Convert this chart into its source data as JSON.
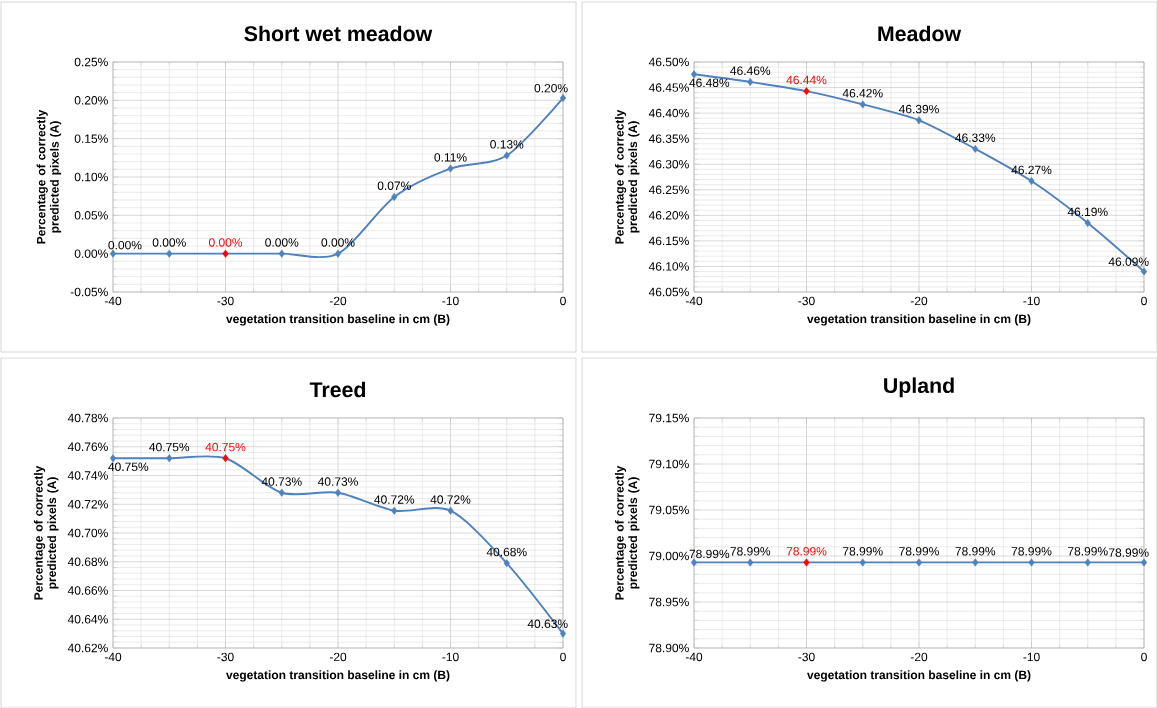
{
  "chart_data": [
    {
      "type": "line",
      "title": "Short wet meadow",
      "xlabel": "vegetation transition  baseline in cm (B)",
      "ylabel": "Percentage of correctly predicted pixels (A)",
      "x": [
        -40,
        -35,
        -30,
        -25,
        -20,
        -15,
        -10,
        -5,
        0
      ],
      "marker": "diamond",
      "line_style": "solid",
      "grid": true,
      "xlim": [
        -40,
        0
      ],
      "xticks": [
        -40,
        -30,
        -20,
        -10,
        0
      ],
      "ylim": [
        -0.05,
        0.25
      ],
      "yticks": [
        {
          "value": -0.05,
          "label": "-0.05%"
        },
        {
          "value": 0,
          "label": "0.00%"
        },
        {
          "value": 0.05,
          "label": "0.05%"
        },
        {
          "value": 0.1,
          "label": "0.10%"
        },
        {
          "value": 0.15,
          "label": "0.15%"
        },
        {
          "value": 0.2,
          "label": "0.20%"
        },
        {
          "value": 0.25,
          "label": "0.25%"
        }
      ],
      "series": [
        {
          "color": "#4f81bd",
          "colors": [
            "#4f81bd",
            "#4f81bd",
            "#ff0000",
            "#4f81bd",
            "#4f81bd",
            "#4f81bd",
            "#4f81bd",
            "#4f81bd",
            "#4f81bd"
          ],
          "values": [
            0,
            0,
            0,
            0,
            0,
            0.074,
            0.111,
            0.128,
            0.203
          ],
          "value_labels": [
            "0.00%",
            "0.00%",
            "0.00%",
            "0.00%",
            "0.00%",
            "0.07%",
            "0.11%",
            "0.13%",
            "0.20%"
          ]
        }
      ]
    },
    {
      "type": "line",
      "title": "Meadow",
      "xlabel": "vegetation transition  baseline in cm (B)",
      "ylabel": "Percentage of correctly predicted pixels (A)",
      "x": [
        -40,
        -35,
        -30,
        -25,
        -20,
        -15,
        -10,
        -5,
        0
      ],
      "marker": "diamond",
      "line_style": "solid",
      "grid": true,
      "xlim": [
        -40,
        0
      ],
      "xticks": [
        -40,
        -30,
        -20,
        -10,
        0
      ],
      "ylim": [
        46.05,
        46.5
      ],
      "yticks": [
        {
          "value": 46.05,
          "label": "46.05%"
        },
        {
          "value": 46.1,
          "label": "46.10%"
        },
        {
          "value": 46.15,
          "label": "46.15%"
        },
        {
          "value": 46.2,
          "label": "46.20%"
        },
        {
          "value": 46.25,
          "label": "46.25%"
        },
        {
          "value": 46.3,
          "label": "46.30%"
        },
        {
          "value": 46.35,
          "label": "46.35%"
        },
        {
          "value": 46.4,
          "label": "46.40%"
        },
        {
          "value": 46.45,
          "label": "46.45%"
        },
        {
          "value": 46.5,
          "label": "46.50%"
        }
      ],
      "series": [
        {
          "color": "#4f81bd",
          "colors": [
            "#4f81bd",
            "#4f81bd",
            "#ff0000",
            "#4f81bd",
            "#4f81bd",
            "#4f81bd",
            "#4f81bd",
            "#4f81bd",
            "#4f81bd"
          ],
          "values": [
            46.476,
            46.461,
            46.443,
            46.417,
            46.386,
            46.33,
            46.267,
            46.185,
            46.09
          ],
          "value_labels": [
            "46.48%",
            "46.46%",
            "46.44%",
            "46.42%",
            "46.39%",
            "46.33%",
            "46.27%",
            "46.19%",
            "46.09%"
          ]
        }
      ]
    },
    {
      "type": "line",
      "title": "Treed",
      "xlabel": "vegetation transition  baseline in cm (B)",
      "ylabel": "Percentage of correctly predicted pixels (A)",
      "x": [
        -40,
        -35,
        -30,
        -25,
        -20,
        -15,
        -10,
        -5,
        0
      ],
      "marker": "diamond",
      "line_style": "solid",
      "grid": true,
      "xlim": [
        -40,
        0
      ],
      "xticks": [
        -40,
        -30,
        -20,
        -10,
        0
      ],
      "ylim": [
        40.62,
        40.78
      ],
      "yticks": [
        {
          "value": 40.62,
          "label": "40.62%"
        },
        {
          "value": 40.64,
          "label": "40.64%"
        },
        {
          "value": 40.66,
          "label": "40.66%"
        },
        {
          "value": 40.68,
          "label": "40.68%"
        },
        {
          "value": 40.7,
          "label": "40.70%"
        },
        {
          "value": 40.72,
          "label": "40.72%"
        },
        {
          "value": 40.74,
          "label": "40.74%"
        },
        {
          "value": 40.76,
          "label": "40.76%"
        },
        {
          "value": 40.78,
          "label": "40.78%"
        }
      ],
      "series": [
        {
          "color": "#4f81bd",
          "colors": [
            "#4f81bd",
            "#4f81bd",
            "#ff0000",
            "#4f81bd",
            "#4f81bd",
            "#4f81bd",
            "#4f81bd",
            "#4f81bd",
            "#4f81bd"
          ],
          "values": [
            40.752,
            40.752,
            40.752,
            40.728,
            40.728,
            40.7155,
            40.7155,
            40.679,
            40.63
          ],
          "value_labels": [
            "40.75%",
            "40.75%",
            "40.75%",
            "40.73%",
            "40.73%",
            "40.72%",
            "40.72%",
            "40.68%",
            "40.63%"
          ]
        }
      ]
    },
    {
      "type": "line",
      "title": "Upland",
      "xlabel": "vegetation transition  baseline in cm (B)",
      "ylabel": "Percentage of correctly predicted pixels (A)",
      "x": [
        -40,
        -35,
        -30,
        -25,
        -20,
        -15,
        -10,
        -5,
        0
      ],
      "marker": "diamond",
      "line_style": "solid",
      "grid": true,
      "xlim": [
        -40,
        0
      ],
      "xticks": [
        -40,
        -30,
        -20,
        -10,
        0
      ],
      "ylim": [
        78.9,
        79.15
      ],
      "yticks": [
        {
          "value": 78.9,
          "label": "78.90%"
        },
        {
          "value": 78.95,
          "label": "78.95%"
        },
        {
          "value": 79.0,
          "label": "79.00%"
        },
        {
          "value": 79.05,
          "label": "79.05%"
        },
        {
          "value": 79.1,
          "label": "79.10%"
        },
        {
          "value": 79.15,
          "label": "79.15%"
        }
      ],
      "series": [
        {
          "color": "#4f81bd",
          "colors": [
            "#4f81bd",
            "#4f81bd",
            "#ff0000",
            "#4f81bd",
            "#4f81bd",
            "#4f81bd",
            "#4f81bd",
            "#4f81bd",
            "#4f81bd"
          ],
          "values": [
            78.993,
            78.993,
            78.993,
            78.993,
            78.993,
            78.993,
            78.993,
            78.993,
            78.993
          ],
          "value_labels": [
            "78.99%",
            "78.99%",
            "78.99%",
            "78.99%",
            "78.99%",
            "78.99%",
            "78.99%",
            "78.99%",
            "78.99%"
          ]
        }
      ]
    }
  ]
}
